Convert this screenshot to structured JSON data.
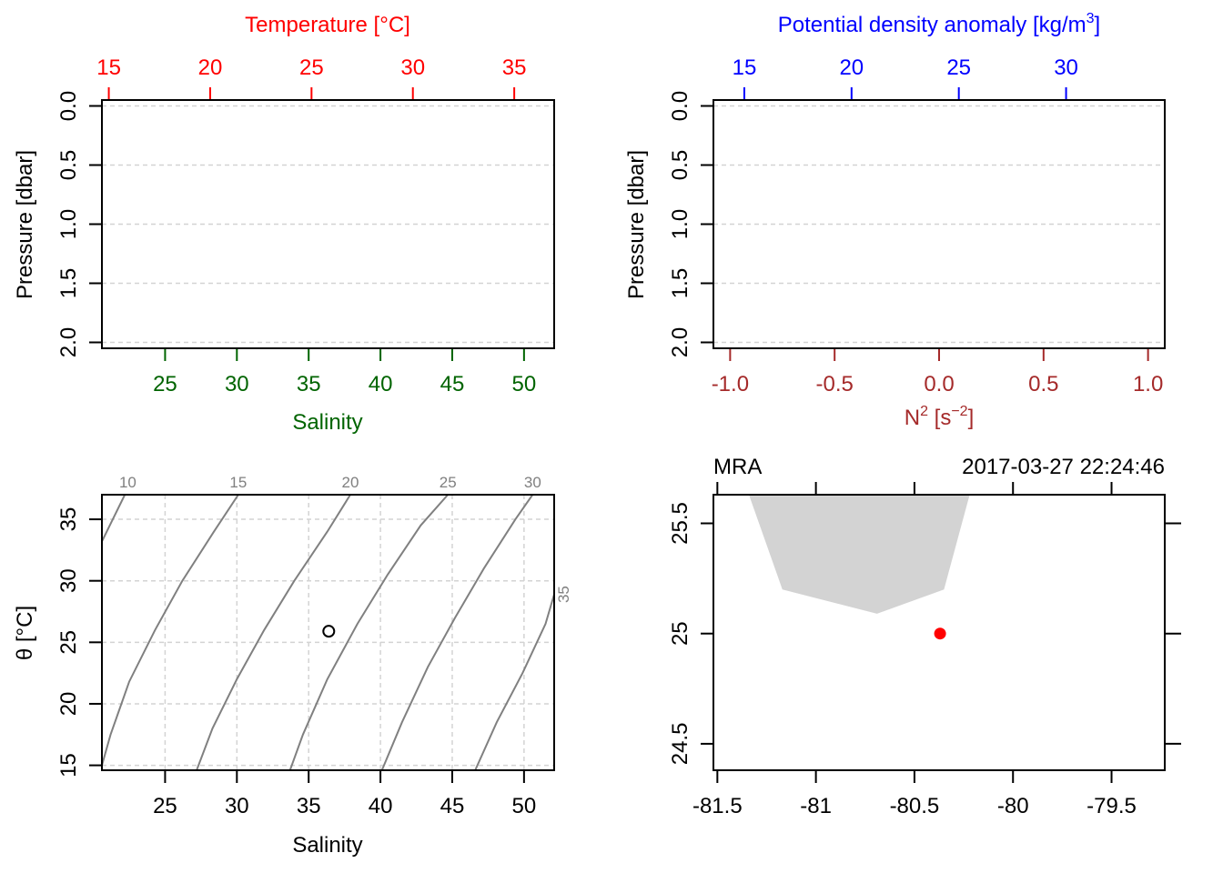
{
  "colors": {
    "temperature": "#ff0000",
    "salinity": "#006400",
    "density": "#0000ff",
    "n2": "#a52a2a",
    "isopycnal": "#808080",
    "grid": "#d3d3d3",
    "land": "#d3d3d3",
    "station": "#ff0000",
    "axis": "#000000"
  },
  "chart_data": [
    {
      "type": "line",
      "panel": "salinity-temperature-profile",
      "top_axis": {
        "label": "Temperature [°C]",
        "ticks": [
          "15",
          "20",
          "25",
          "30",
          "35"
        ],
        "range": [
          14.66,
          36.97
        ]
      },
      "bottom_axis": {
        "label": "Salinity",
        "ticks": [
          "25",
          "30",
          "35",
          "40",
          "45",
          "50"
        ],
        "range": [
          20.6,
          52.1
        ]
      },
      "left_axis": {
        "label": "Pressure [dbar]",
        "ticks": [
          "0.0",
          "0.5",
          "1.0",
          "1.5",
          "2.0"
        ],
        "range": [
          -0.05,
          2.05
        ],
        "reversed": true
      },
      "grid": true,
      "series": []
    },
    {
      "type": "line",
      "panel": "density-n2-profile",
      "top_axis": {
        "label_main": "Potential density anomaly [kg/m",
        "label_sup": "3",
        "label_end": "]",
        "ticks": [
          "15",
          "20",
          "25",
          "30"
        ],
        "range": [
          13.56,
          34.6
        ]
      },
      "bottom_axis": {
        "label_main": "N",
        "label_sup": "2",
        "label_mid": " [s",
        "label_sup2": "−2",
        "label_end": "]",
        "ticks": [
          "-1.0",
          "-0.5",
          "0.0",
          "0.5",
          "1.0"
        ],
        "range": [
          -1.08,
          1.08
        ]
      },
      "left_axis": {
        "label": "Pressure [dbar]",
        "ticks": [
          "0.0",
          "0.5",
          "1.0",
          "1.5",
          "2.0"
        ],
        "range": [
          -0.05,
          2.05
        ],
        "reversed": true
      },
      "grid": true,
      "series": []
    },
    {
      "type": "scatter",
      "panel": "ts-diagram",
      "x_axis": {
        "label": "Salinity",
        "ticks": [
          "25",
          "30",
          "35",
          "40",
          "45",
          "50"
        ],
        "range": [
          20.6,
          52.1
        ]
      },
      "y_axis": {
        "label": "θ [°C]",
        "ticks": [
          "15",
          "20",
          "25",
          "30",
          "35"
        ],
        "range": [
          14.6,
          37.0
        ]
      },
      "grid": true,
      "isopycnal_labels": [
        "10",
        "15",
        "20",
        "25",
        "30",
        "35"
      ],
      "isopycnals": [
        {
          "label": "10",
          "points": [
            [
              20.6,
              33.2
            ],
            [
              22.2,
              37.0
            ]
          ],
          "label_x": 22.4
        },
        {
          "label": "10",
          "points": [
            [
              20.6,
              15.0
            ],
            [
              21.2,
              17.5
            ],
            [
              22.5,
              21.8
            ],
            [
              24.3,
              26.0
            ],
            [
              26.2,
              30.0
            ],
            [
              28.4,
              34.0
            ],
            [
              30.1,
              37.0
            ]
          ],
          "label_x": 30.1
        },
        {
          "label": "15",
          "points": [
            [
              27.2,
              14.6
            ],
            [
              28.3,
              18.0
            ],
            [
              30.0,
              22.0
            ],
            [
              31.9,
              26.0
            ],
            [
              34.0,
              30.0
            ],
            [
              36.3,
              34.0
            ],
            [
              37.9,
              37.0
            ]
          ],
          "label_x": 37.9
        },
        {
          "label": "20",
          "points": [
            [
              33.7,
              14.6
            ],
            [
              34.6,
              17.5
            ],
            [
              36.3,
              22.0
            ],
            [
              38.4,
              26.5
            ],
            [
              40.5,
              30.5
            ],
            [
              42.8,
              34.5
            ],
            [
              44.7,
              37.0
            ]
          ],
          "label_x": 44.7
        },
        {
          "label": "25",
          "points": [
            [
              40.1,
              14.6
            ],
            [
              41.5,
              18.5
            ],
            [
              43.3,
              23.0
            ],
            [
              45.2,
              27.0
            ],
            [
              47.2,
              31.0
            ],
            [
              49.4,
              35.0
            ],
            [
              50.6,
              37.0
            ]
          ],
          "label_x": 50.6
        },
        {
          "label": "30",
          "points": [
            [
              46.6,
              14.6
            ],
            [
              48.1,
              18.5
            ],
            [
              49.9,
              22.5
            ],
            [
              51.5,
              26.5
            ],
            [
              52.1,
              28.9
            ]
          ],
          "label_x": null
        }
      ],
      "points": [
        {
          "x": 36.4,
          "y": 25.9
        }
      ]
    },
    {
      "type": "scatter",
      "panel": "station-map",
      "station": "MRA",
      "timestamp": "2017-03-27 22:24:46",
      "x_axis": {
        "ticks": [
          "-81.5",
          "-81",
          "-80.5",
          "-80",
          "-79.5"
        ],
        "range": [
          -81.52,
          -79.23
        ]
      },
      "y_axis": {
        "ticks": [
          "24.5",
          "25",
          "25.5"
        ],
        "range": [
          24.38,
          25.63
        ]
      },
      "land_polygon": [
        [
          -81.34,
          25.63
        ],
        [
          -81.17,
          25.2
        ],
        [
          -80.69,
          25.09
        ],
        [
          -80.35,
          25.2
        ],
        [
          -80.22,
          25.63
        ]
      ],
      "points": [
        {
          "lon": -80.37,
          "lat": 25.0
        }
      ]
    }
  ]
}
